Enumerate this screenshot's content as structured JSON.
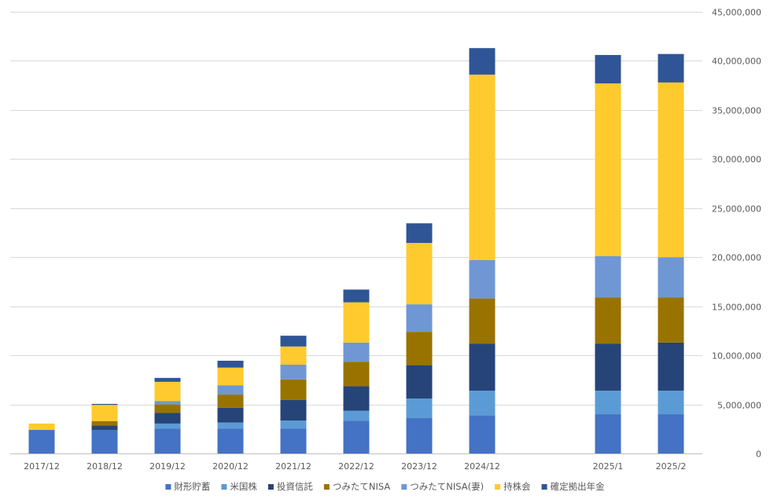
{
  "chart_data": {
    "type": "bar",
    "stacked": true,
    "categories": [
      "2017/12",
      "2018/12",
      "2019/12",
      "2020/12",
      "2021/12",
      "2022/12",
      "2023/12",
      "2024/12",
      "",
      "2025/1",
      "2025/2"
    ],
    "ylim": [
      0,
      45000000
    ],
    "yticks": [
      0,
      5000000,
      10000000,
      15000000,
      20000000,
      25000000,
      30000000,
      35000000,
      40000000,
      45000000
    ],
    "ytick_labels": [
      "0",
      "5,000,000",
      "10,000,000",
      "15,000,000",
      "20,000,000",
      "25,000,000",
      "30,000,000",
      "35,000,000",
      "40,000,000",
      "45,000,000"
    ],
    "y_axis_position": "right",
    "grid": true,
    "legend_position": "bottom",
    "series": [
      {
        "name": "財形貯蓄",
        "color": "#4472C4",
        "values": [
          2400000,
          2400000,
          2550000,
          2550000,
          2550000,
          3350000,
          3600000,
          3900000,
          null,
          4000000,
          4000000
        ]
      },
      {
        "name": "米国株",
        "color": "#5B9BD5",
        "values": [
          0,
          0,
          500000,
          600000,
          800000,
          1000000,
          2000000,
          2500000,
          null,
          2400000,
          2400000
        ]
      },
      {
        "name": "投資信託",
        "color": "#264478",
        "values": [
          0,
          450000,
          1100000,
          1500000,
          2100000,
          2500000,
          3400000,
          4800000,
          null,
          4800000,
          4900000
        ]
      },
      {
        "name": "つみたてNISA",
        "color": "#997300",
        "values": [
          0,
          450000,
          850000,
          1350000,
          2100000,
          2500000,
          3400000,
          4600000,
          null,
          4700000,
          4600000
        ]
      },
      {
        "name": "つみたてNISA(妻)",
        "color": "#6F97D3",
        "values": [
          0,
          0,
          350000,
          950000,
          1500000,
          1950000,
          2800000,
          3900000,
          null,
          4200000,
          4100000
        ]
      },
      {
        "name": "持株会",
        "color": "#FFCA2D",
        "values": [
          650000,
          1650000,
          1950000,
          1800000,
          1850000,
          4100000,
          6250000,
          18900000,
          null,
          17600000,
          17800000
        ]
      },
      {
        "name": "確定拠出年金",
        "color": "#2F5597",
        "values": [
          0,
          100000,
          400000,
          700000,
          1100000,
          1300000,
          2000000,
          2700000,
          null,
          2900000,
          2900000
        ]
      }
    ]
  }
}
